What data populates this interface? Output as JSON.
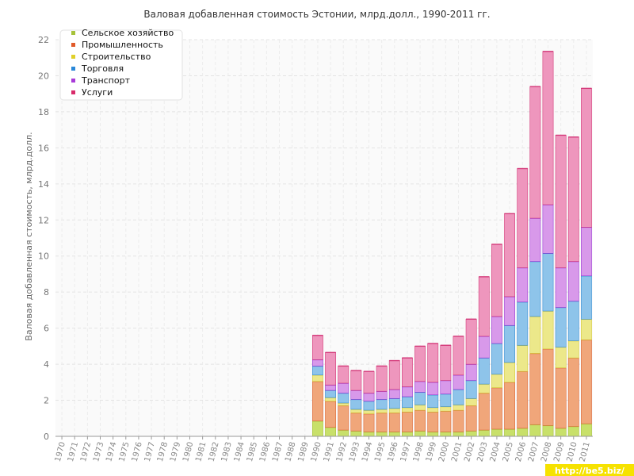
{
  "chart_data": {
    "type": "bar",
    "stacked": true,
    "title": "Валовая добавленная стоимость Эстонии, млрд.долл., 1990-2011 гг.",
    "ylabel": "Валовая добавленная стоимость, млрд.долл.",
    "xlabel": "",
    "ylim": [
      0,
      22
    ],
    "yticks": [
      0,
      2,
      4,
      6,
      8,
      10,
      12,
      14,
      16,
      18,
      20,
      22
    ],
    "grid": true,
    "legend_position": "top-left",
    "categories": [
      "1970",
      "1971",
      "1972",
      "1973",
      "1974",
      "1975",
      "1976",
      "1977",
      "1978",
      "1979",
      "1980",
      "1981",
      "1982",
      "1983",
      "1984",
      "1985",
      "1986",
      "1987",
      "1988",
      "1989",
      "1990",
      "1991",
      "1992",
      "1993",
      "1994",
      "1995",
      "1996",
      "1997",
      "1998",
      "1999",
      "2000",
      "2001",
      "2002",
      "2003",
      "2004",
      "2005",
      "2006",
      "2007",
      "2008",
      "2009",
      "2010",
      "2011"
    ],
    "series": [
      {
        "name": "Сельское хозяйство",
        "color": "#c8e06a",
        "values": [
          null,
          null,
          null,
          null,
          null,
          null,
          null,
          null,
          null,
          null,
          null,
          null,
          null,
          null,
          null,
          null,
          null,
          null,
          null,
          null,
          0.85,
          0.5,
          0.35,
          0.3,
          0.25,
          0.25,
          0.25,
          0.25,
          0.3,
          0.25,
          0.25,
          0.25,
          0.3,
          0.35,
          0.4,
          0.4,
          0.45,
          0.65,
          0.6,
          0.45,
          0.55,
          0.7
        ]
      },
      {
        "name": "Промышленность",
        "color": "#f0a67a",
        "values": [
          null,
          null,
          null,
          null,
          null,
          null,
          null,
          null,
          null,
          null,
          null,
          null,
          null,
          null,
          null,
          null,
          null,
          null,
          null,
          null,
          2.2,
          1.45,
          1.35,
          1.0,
          1.0,
          1.05,
          1.05,
          1.1,
          1.15,
          1.1,
          1.15,
          1.2,
          1.4,
          2.05,
          2.3,
          2.6,
          3.15,
          3.95,
          4.25,
          3.35,
          3.8,
          4.65
        ]
      },
      {
        "name": "Строительство",
        "color": "#ece88a",
        "values": [
          null,
          null,
          null,
          null,
          null,
          null,
          null,
          null,
          null,
          null,
          null,
          null,
          null,
          null,
          null,
          null,
          null,
          null,
          null,
          null,
          0.35,
          0.2,
          0.15,
          0.2,
          0.2,
          0.2,
          0.25,
          0.25,
          0.3,
          0.25,
          0.25,
          0.3,
          0.4,
          0.5,
          0.75,
          1.1,
          1.45,
          2.05,
          2.1,
          1.15,
          0.95,
          1.15
        ]
      },
      {
        "name": "Торговля",
        "color": "#8ec4ea",
        "values": [
          null,
          null,
          null,
          null,
          null,
          null,
          null,
          null,
          null,
          null,
          null,
          null,
          null,
          null,
          null,
          null,
          null,
          null,
          null,
          null,
          0.5,
          0.4,
          0.55,
          0.55,
          0.5,
          0.55,
          0.55,
          0.6,
          0.7,
          0.7,
          0.7,
          0.85,
          1.0,
          1.45,
          1.7,
          2.05,
          2.4,
          3.05,
          3.2,
          2.2,
          2.2,
          2.4
        ]
      },
      {
        "name": "Транспорт",
        "color": "#d899ea",
        "values": [
          null,
          null,
          null,
          null,
          null,
          null,
          null,
          null,
          null,
          null,
          null,
          null,
          null,
          null,
          null,
          null,
          null,
          null,
          null,
          null,
          0.35,
          0.3,
          0.55,
          0.5,
          0.45,
          0.45,
          0.5,
          0.55,
          0.6,
          0.7,
          0.75,
          0.8,
          0.9,
          1.2,
          1.5,
          1.6,
          1.9,
          2.4,
          2.7,
          2.2,
          2.2,
          2.7
        ]
      },
      {
        "name": "Услуги",
        "color": "#ee96bd",
        "values": [
          null,
          null,
          null,
          null,
          null,
          null,
          null,
          null,
          null,
          null,
          null,
          null,
          null,
          null,
          null,
          null,
          null,
          null,
          null,
          null,
          1.35,
          1.8,
          0.95,
          1.1,
          1.2,
          1.4,
          1.6,
          1.6,
          1.95,
          2.15,
          1.95,
          2.15,
          2.5,
          3.3,
          4.0,
          4.6,
          5.5,
          7.3,
          8.5,
          7.35,
          6.9,
          7.7
        ]
      }
    ],
    "edge_colors": [
      "#a6c23a",
      "#dc6a3a",
      "#d4c93a",
      "#3a8fd4",
      "#9a3ad4",
      "#d43a7a"
    ],
    "legend_marker_colors": [
      "#a6c23a",
      "#e05a2a",
      "#e0d02a",
      "#2a88d8",
      "#a83ad8",
      "#d82a6a"
    ]
  },
  "watermark": "http://be5.biz/"
}
